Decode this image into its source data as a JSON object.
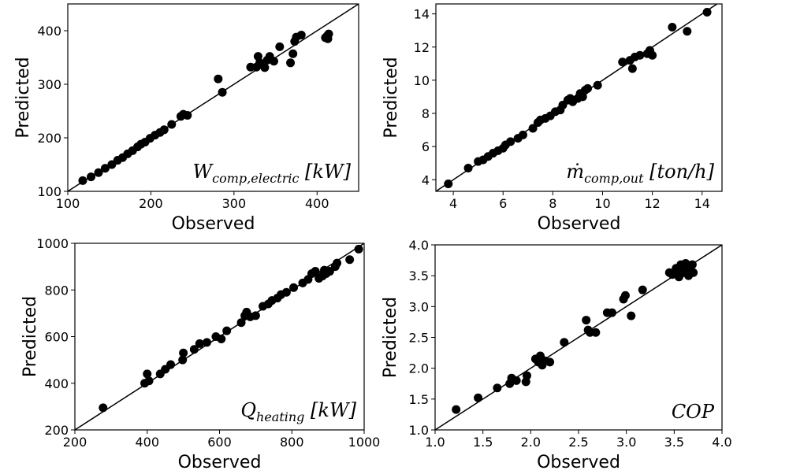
{
  "chart_data": [
    {
      "type": "scatter",
      "xlabel": "Observed",
      "ylabel": "Predicted",
      "annotation": "W_comp,electric [kW]",
      "xlim": [
        100,
        450
      ],
      "ylim": [
        100,
        450
      ],
      "xticks": [
        100,
        200,
        300,
        400
      ],
      "yticks": [
        100,
        200,
        300,
        400
      ],
      "reference_line": "y = x",
      "points": [
        [
          118,
          120
        ],
        [
          128,
          127
        ],
        [
          137,
          135
        ],
        [
          145,
          143
        ],
        [
          153,
          150
        ],
        [
          160,
          158
        ],
        [
          166,
          163
        ],
        [
          172,
          170
        ],
        [
          178,
          176
        ],
        [
          184,
          183
        ],
        [
          188,
          188
        ],
        [
          193,
          192
        ],
        [
          199,
          199
        ],
        [
          205,
          205
        ],
        [
          211,
          210
        ],
        [
          216,
          215
        ],
        [
          225,
          225
        ],
        [
          236,
          240
        ],
        [
          239,
          244
        ],
        [
          244,
          242
        ],
        [
          281,
          310
        ],
        [
          286,
          285
        ],
        [
          320,
          332
        ],
        [
          327,
          332
        ],
        [
          329,
          352
        ],
        [
          331,
          340
        ],
        [
          337,
          331
        ],
        [
          340,
          345
        ],
        [
          343,
          352
        ],
        [
          348,
          343
        ],
        [
          355,
          370
        ],
        [
          368,
          340
        ],
        [
          371,
          357
        ],
        [
          373,
          380
        ],
        [
          375,
          388
        ],
        [
          381,
          392
        ],
        [
          410,
          387
        ],
        [
          412,
          390
        ],
        [
          414,
          394
        ],
        [
          413,
          385
        ]
      ]
    },
    {
      "type": "scatter",
      "xlabel": "Observed",
      "ylabel": "Predicted",
      "annotation": "ṁ_comp,out [ton/h]",
      "xlim": [
        3.3,
        14.8
      ],
      "ylim": [
        3.3,
        14.6
      ],
      "xticks": [
        4,
        6,
        8,
        10,
        12,
        14
      ],
      "yticks": [
        4,
        6,
        8,
        10,
        12,
        14
      ],
      "reference_line": "y = x",
      "points": [
        [
          3.8,
          3.75
        ],
        [
          4.6,
          4.7
        ],
        [
          5.0,
          5.1
        ],
        [
          5.2,
          5.2
        ],
        [
          5.4,
          5.4
        ],
        [
          5.6,
          5.6
        ],
        [
          5.8,
          5.75
        ],
        [
          6.0,
          5.9
        ],
        [
          6.1,
          6.1
        ],
        [
          6.3,
          6.3
        ],
        [
          6.6,
          6.5
        ],
        [
          6.8,
          6.7
        ],
        [
          7.2,
          7.1
        ],
        [
          7.4,
          7.45
        ],
        [
          7.5,
          7.6
        ],
        [
          7.7,
          7.7
        ],
        [
          7.9,
          7.85
        ],
        [
          8.1,
          8.1
        ],
        [
          8.3,
          8.2
        ],
        [
          8.4,
          8.5
        ],
        [
          8.6,
          8.8
        ],
        [
          8.7,
          8.9
        ],
        [
          8.8,
          8.7
        ],
        [
          9.0,
          8.9
        ],
        [
          9.1,
          9.2
        ],
        [
          9.2,
          9.0
        ],
        [
          9.3,
          9.4
        ],
        [
          9.4,
          9.5
        ],
        [
          9.8,
          9.7
        ],
        [
          10.8,
          11.1
        ],
        [
          11.1,
          11.2
        ],
        [
          11.2,
          10.7
        ],
        [
          11.3,
          11.4
        ],
        [
          11.5,
          11.5
        ],
        [
          11.8,
          11.6
        ],
        [
          11.9,
          11.8
        ],
        [
          12.0,
          11.5
        ],
        [
          12.8,
          13.2
        ],
        [
          13.4,
          12.95
        ],
        [
          14.2,
          14.1
        ]
      ]
    },
    {
      "type": "scatter",
      "xlabel": "Observed",
      "ylabel": "Predicted",
      "annotation": "Q_heating [kW]",
      "xlim": [
        200,
        1000
      ],
      "ylim": [
        200,
        1000
      ],
      "xticks": [
        200,
        400,
        600,
        800,
        1000
      ],
      "yticks": [
        200,
        400,
        600,
        800,
        1000
      ],
      "reference_line": "y = x",
      "points": [
        [
          278,
          295
        ],
        [
          393,
          400
        ],
        [
          400,
          440
        ],
        [
          405,
          410
        ],
        [
          436,
          440
        ],
        [
          450,
          460
        ],
        [
          465,
          480
        ],
        [
          498,
          500
        ],
        [
          500,
          530
        ],
        [
          530,
          545
        ],
        [
          545,
          570
        ],
        [
          565,
          575
        ],
        [
          590,
          600
        ],
        [
          605,
          590
        ],
        [
          620,
          625
        ],
        [
          660,
          660
        ],
        [
          670,
          690
        ],
        [
          675,
          705
        ],
        [
          685,
          685
        ],
        [
          700,
          690
        ],
        [
          720,
          730
        ],
        [
          735,
          740
        ],
        [
          745,
          755
        ],
        [
          760,
          765
        ],
        [
          770,
          780
        ],
        [
          785,
          790
        ],
        [
          805,
          810
        ],
        [
          830,
          830
        ],
        [
          845,
          845
        ],
        [
          855,
          870
        ],
        [
          865,
          880
        ],
        [
          875,
          850
        ],
        [
          885,
          860
        ],
        [
          890,
          885
        ],
        [
          895,
          870
        ],
        [
          905,
          880
        ],
        [
          920,
          900
        ],
        [
          925,
          915
        ],
        [
          960,
          930
        ],
        [
          985,
          975
        ]
      ]
    },
    {
      "type": "scatter",
      "xlabel": "Observed",
      "ylabel": "Predicted",
      "annotation": "COP",
      "xlim": [
        1.0,
        4.0
      ],
      "ylim": [
        1.0,
        4.0
      ],
      "xticks": [
        1.0,
        1.5,
        2.0,
        2.5,
        3.0,
        3.5,
        4.0
      ],
      "yticks": [
        1.0,
        1.5,
        2.0,
        2.5,
        3.0,
        3.5,
        4.0
      ],
      "reference_line": "y = x",
      "points": [
        [
          1.22,
          1.33
        ],
        [
          1.45,
          1.52
        ],
        [
          1.65,
          1.68
        ],
        [
          1.78,
          1.75
        ],
        [
          1.8,
          1.84
        ],
        [
          1.85,
          1.8
        ],
        [
          1.95,
          1.78
        ],
        [
          1.96,
          1.88
        ],
        [
          2.05,
          2.15
        ],
        [
          2.08,
          2.1
        ],
        [
          2.1,
          2.2
        ],
        [
          2.12,
          2.05
        ],
        [
          2.15,
          2.12
        ],
        [
          2.2,
          2.1
        ],
        [
          2.35,
          2.42
        ],
        [
          2.58,
          2.78
        ],
        [
          2.6,
          2.62
        ],
        [
          2.62,
          2.58
        ],
        [
          2.68,
          2.58
        ],
        [
          2.8,
          2.9
        ],
        [
          2.85,
          2.9
        ],
        [
          2.97,
          3.12
        ],
        [
          2.99,
          3.18
        ],
        [
          3.05,
          2.85
        ],
        [
          3.17,
          3.27
        ],
        [
          3.45,
          3.55
        ],
        [
          3.48,
          3.52
        ],
        [
          3.52,
          3.62
        ],
        [
          3.55,
          3.48
        ],
        [
          3.57,
          3.68
        ],
        [
          3.6,
          3.55
        ],
        [
          3.62,
          3.7
        ],
        [
          3.63,
          3.6
        ],
        [
          3.65,
          3.5
        ],
        [
          3.67,
          3.58
        ],
        [
          3.69,
          3.68
        ],
        [
          3.7,
          3.55
        ],
        [
          3.58,
          3.62
        ],
        [
          3.52,
          3.55
        ],
        [
          3.66,
          3.63
        ]
      ]
    }
  ]
}
